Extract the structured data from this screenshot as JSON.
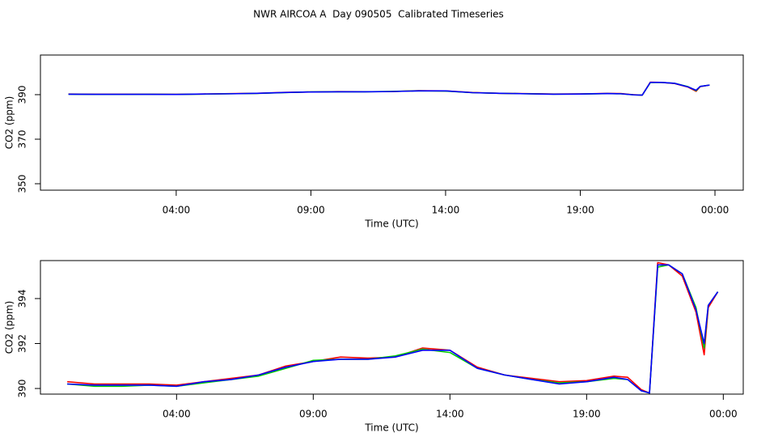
{
  "title": "NWR AIRCOA A  Day 090505  Calibrated Timeseries",
  "chart_data": [
    {
      "type": "line",
      "xlabel": "Time (UTC)",
      "ylabel": "CO2 (ppm)",
      "x": [
        0,
        1,
        2,
        3,
        4,
        5,
        6,
        7,
        8,
        9,
        10,
        11,
        12,
        13,
        14,
        15,
        16,
        17,
        18,
        19,
        20,
        20.5,
        21,
        21.3,
        21.6,
        22,
        22.5,
        23,
        23.3,
        23.45,
        23.8
      ],
      "xlim": [
        -1.04,
        25.05
      ],
      "xticks": [
        {
          "value": 4,
          "label": "04:00"
        },
        {
          "value": 9,
          "label": "09:00"
        },
        {
          "value": 14,
          "label": "14:00"
        },
        {
          "value": 19,
          "label": "19:00"
        },
        {
          "value": 24,
          "label": "00:00"
        }
      ],
      "ylim": [
        347.1,
        407.8
      ],
      "yticks": [
        350,
        370,
        390
      ],
      "series": [
        {
          "color": "#ff0000",
          "values": [
            390.3,
            390.2,
            390.2,
            390.2,
            390.15,
            390.3,
            390.45,
            390.6,
            391.0,
            391.2,
            391.4,
            391.35,
            391.4,
            391.8,
            391.7,
            390.95,
            390.6,
            390.45,
            390.3,
            390.35,
            390.55,
            390.5,
            389.95,
            389.8,
            395.6,
            395.5,
            395.0,
            393.4,
            391.5,
            393.6,
            394.3
          ]
        },
        {
          "color": "#00cc00",
          "values": [
            390.2,
            390.1,
            390.1,
            390.15,
            390.1,
            390.25,
            390.4,
            390.55,
            390.9,
            391.25,
            391.3,
            391.3,
            391.45,
            391.75,
            391.6,
            390.9,
            390.6,
            390.4,
            390.25,
            390.3,
            390.45,
            390.4,
            389.9,
            389.8,
            395.4,
            395.5,
            395.1,
            393.6,
            391.8,
            393.7,
            394.3
          ]
        },
        {
          "color": "#0000ff",
          "values": [
            390.2,
            390.15,
            390.15,
            390.15,
            390.1,
            390.3,
            390.4,
            390.6,
            390.95,
            391.2,
            391.3,
            391.3,
            391.4,
            391.7,
            391.7,
            390.9,
            390.6,
            390.4,
            390.2,
            390.3,
            390.5,
            390.4,
            389.9,
            389.8,
            395.5,
            395.5,
            395.1,
            393.5,
            392.0,
            393.7,
            394.3
          ]
        }
      ]
    },
    {
      "type": "line",
      "xlabel": "Time (UTC)",
      "ylabel": "CO2 (ppm)",
      "x": [
        0,
        1,
        2,
        3,
        4,
        5,
        6,
        7,
        8,
        9,
        10,
        11,
        12,
        13,
        14,
        15,
        16,
        17,
        18,
        19,
        20,
        20.5,
        21,
        21.3,
        21.6,
        22,
        22.5,
        23,
        23.3,
        23.45,
        23.8
      ],
      "xlim": [
        -0.98,
        24.73
      ],
      "xticks": [
        {
          "value": 4,
          "label": "04:00"
        },
        {
          "value": 9,
          "label": "09:00"
        },
        {
          "value": 14,
          "label": "14:00"
        },
        {
          "value": 19,
          "label": "19:00"
        },
        {
          "value": 24,
          "label": "00:00"
        }
      ],
      "ylim": [
        389.75,
        395.69
      ],
      "yticks": [
        390,
        392,
        394
      ],
      "series": [
        {
          "color": "#ff0000",
          "values": [
            390.3,
            390.2,
            390.2,
            390.2,
            390.15,
            390.3,
            390.45,
            390.6,
            391.0,
            391.2,
            391.4,
            391.35,
            391.4,
            391.8,
            391.7,
            390.95,
            390.6,
            390.45,
            390.3,
            390.35,
            390.55,
            390.5,
            389.95,
            389.8,
            395.6,
            395.5,
            395.0,
            393.4,
            391.5,
            393.6,
            394.3
          ]
        },
        {
          "color": "#00cc00",
          "values": [
            390.2,
            390.1,
            390.1,
            390.15,
            390.1,
            390.25,
            390.4,
            390.55,
            390.9,
            391.25,
            391.3,
            391.3,
            391.45,
            391.75,
            391.6,
            390.9,
            390.6,
            390.4,
            390.25,
            390.3,
            390.45,
            390.4,
            389.9,
            389.8,
            395.4,
            395.5,
            395.1,
            393.6,
            391.8,
            393.7,
            394.3
          ]
        },
        {
          "color": "#0000ff",
          "values": [
            390.2,
            390.15,
            390.15,
            390.15,
            390.1,
            390.3,
            390.4,
            390.6,
            390.95,
            391.2,
            391.3,
            391.3,
            391.4,
            391.7,
            391.7,
            390.9,
            390.6,
            390.4,
            390.2,
            390.3,
            390.5,
            390.4,
            389.9,
            389.8,
            395.5,
            395.5,
            395.1,
            393.5,
            392.0,
            393.7,
            394.3
          ]
        }
      ]
    }
  ]
}
